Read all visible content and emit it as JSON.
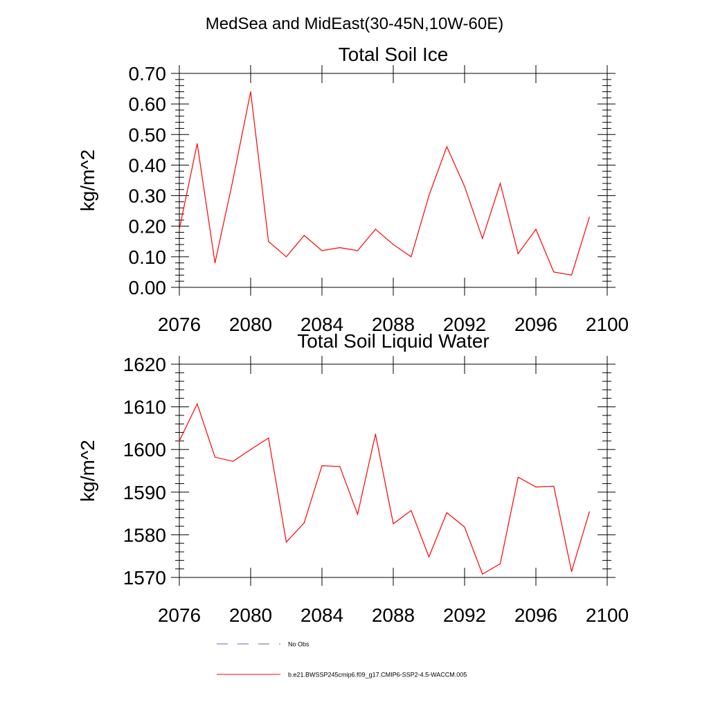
{
  "figure_title": "MedSea and MidEast(30-45N,10W-60E)",
  "chart_data": [
    {
      "type": "line",
      "title": "Total Soil Ice",
      "xlabel": "",
      "ylabel": "kg/m^2",
      "xlim": [
        2076,
        2100
      ],
      "ylim": [
        0.0,
        0.7
      ],
      "xticks": [
        "2076",
        "2080",
        "2084",
        "2088",
        "2092",
        "2096",
        "2100"
      ],
      "yticks": [
        "0.00",
        "0.10",
        "0.20",
        "0.30",
        "0.40",
        "0.50",
        "0.60",
        "0.70"
      ],
      "grid": false,
      "color": "#ff0000",
      "x": [
        2076,
        2077,
        2078,
        2079,
        2080,
        2081,
        2082,
        2083,
        2084,
        2085,
        2086,
        2087,
        2088,
        2089,
        2090,
        2091,
        2092,
        2093,
        2094,
        2095,
        2096,
        2097,
        2098,
        2099
      ],
      "values": [
        0.19,
        0.47,
        0.08,
        0.35,
        0.64,
        0.15,
        0.1,
        0.17,
        0.12,
        0.13,
        0.12,
        0.19,
        0.14,
        0.1,
        0.3,
        0.46,
        0.33,
        0.16,
        0.34,
        0.11,
        0.19,
        0.05,
        0.04,
        0.23
      ]
    },
    {
      "type": "line",
      "title": "Total Soil Liquid Water",
      "xlabel": "",
      "ylabel": "kg/m^2",
      "xlim": [
        2076,
        2100
      ],
      "ylim": [
        1570,
        1620
      ],
      "xticks": [
        "2076",
        "2080",
        "2084",
        "2088",
        "2092",
        "2096",
        "2100"
      ],
      "yticks": [
        "1570",
        "1580",
        "1590",
        "1600",
        "1610",
        "1620"
      ],
      "grid": false,
      "color": "#ff0000",
      "x": [
        2076,
        2077,
        2078,
        2079,
        2080,
        2081,
        2082,
        2083,
        2084,
        2085,
        2086,
        2087,
        2088,
        2089,
        2090,
        2091,
        2092,
        2093,
        2094,
        2095,
        2096,
        2097,
        2098,
        2099
      ],
      "values": [
        1602.0,
        1610.7,
        1598.2,
        1597.2,
        1600.0,
        1602.7,
        1578.3,
        1582.8,
        1596.2,
        1596.0,
        1584.8,
        1603.6,
        1582.6,
        1585.7,
        1574.8,
        1585.2,
        1581.8,
        1570.8,
        1573.2,
        1593.5,
        1591.2,
        1591.4,
        1571.4,
        1585.4
      ]
    }
  ],
  "legend": [
    {
      "label": "No Obs",
      "color": "#5a6fa8",
      "style": "dashed"
    },
    {
      "label": "b.e21.BWSSP245cmip6.f09_g17.CMIP6-SSP2-4.5-WACCM.005",
      "color": "#ff0000",
      "style": "solid"
    }
  ]
}
